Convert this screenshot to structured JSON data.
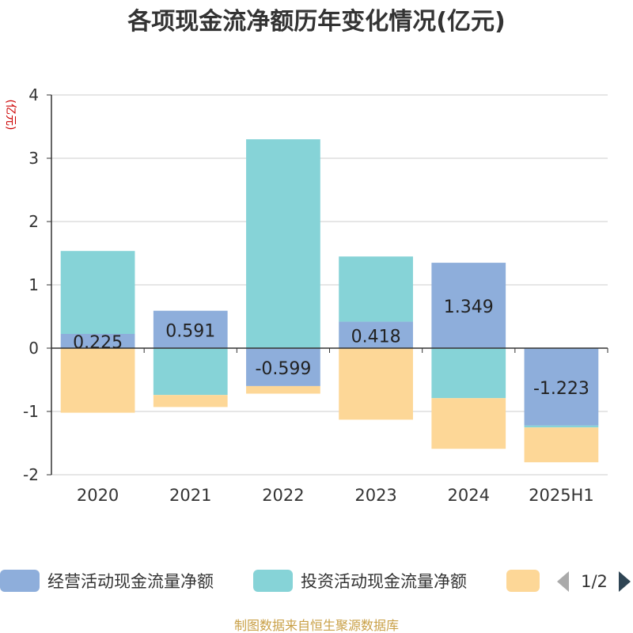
{
  "page": {
    "title": "各项现金流净额历年变化情况(亿元)",
    "unit_label": "(亿元)",
    "footer": "制图数据来自恒生聚源数据库"
  },
  "legend": {
    "items": [
      {
        "name": "经营活动现金流量净额",
        "color": "#8eaedb"
      },
      {
        "name": "投资活动现金流量净额",
        "color": "#86d3d7"
      },
      {
        "name": "",
        "color": "#fdd797"
      }
    ],
    "page_indicator": "1/2"
  },
  "chart_data": {
    "type": "bar",
    "stacked": true,
    "title": "各项现金流净额历年变化情况(亿元)",
    "ylabel": "(亿元)",
    "ylim": [
      -2,
      4
    ],
    "yticks": [
      4,
      3,
      2,
      1,
      0,
      -1,
      -2
    ],
    "grid": true,
    "legend_position": "bottom",
    "categories": [
      "2020",
      "2021",
      "2022",
      "2023",
      "2024",
      "2025H1"
    ],
    "series": [
      {
        "name": "经营活动现金流量净额",
        "color": "#8eaedb",
        "values": [
          0.225,
          0.591,
          -0.599,
          0.418,
          1.349,
          -1.223
        ],
        "labels": [
          "0.225",
          "0.591",
          "-0.599",
          "0.418",
          "1.349",
          "-1.223"
        ]
      },
      {
        "name": "投资活动现金流量净额",
        "color": "#86d3d7",
        "values": [
          1.31,
          -0.74,
          3.3,
          1.03,
          -0.79,
          -0.03
        ]
      },
      {
        "name": "",
        "color": "#fdd797",
        "values": [
          -1.02,
          -0.19,
          -0.12,
          -1.13,
          -0.8,
          -0.55
        ]
      }
    ]
  }
}
